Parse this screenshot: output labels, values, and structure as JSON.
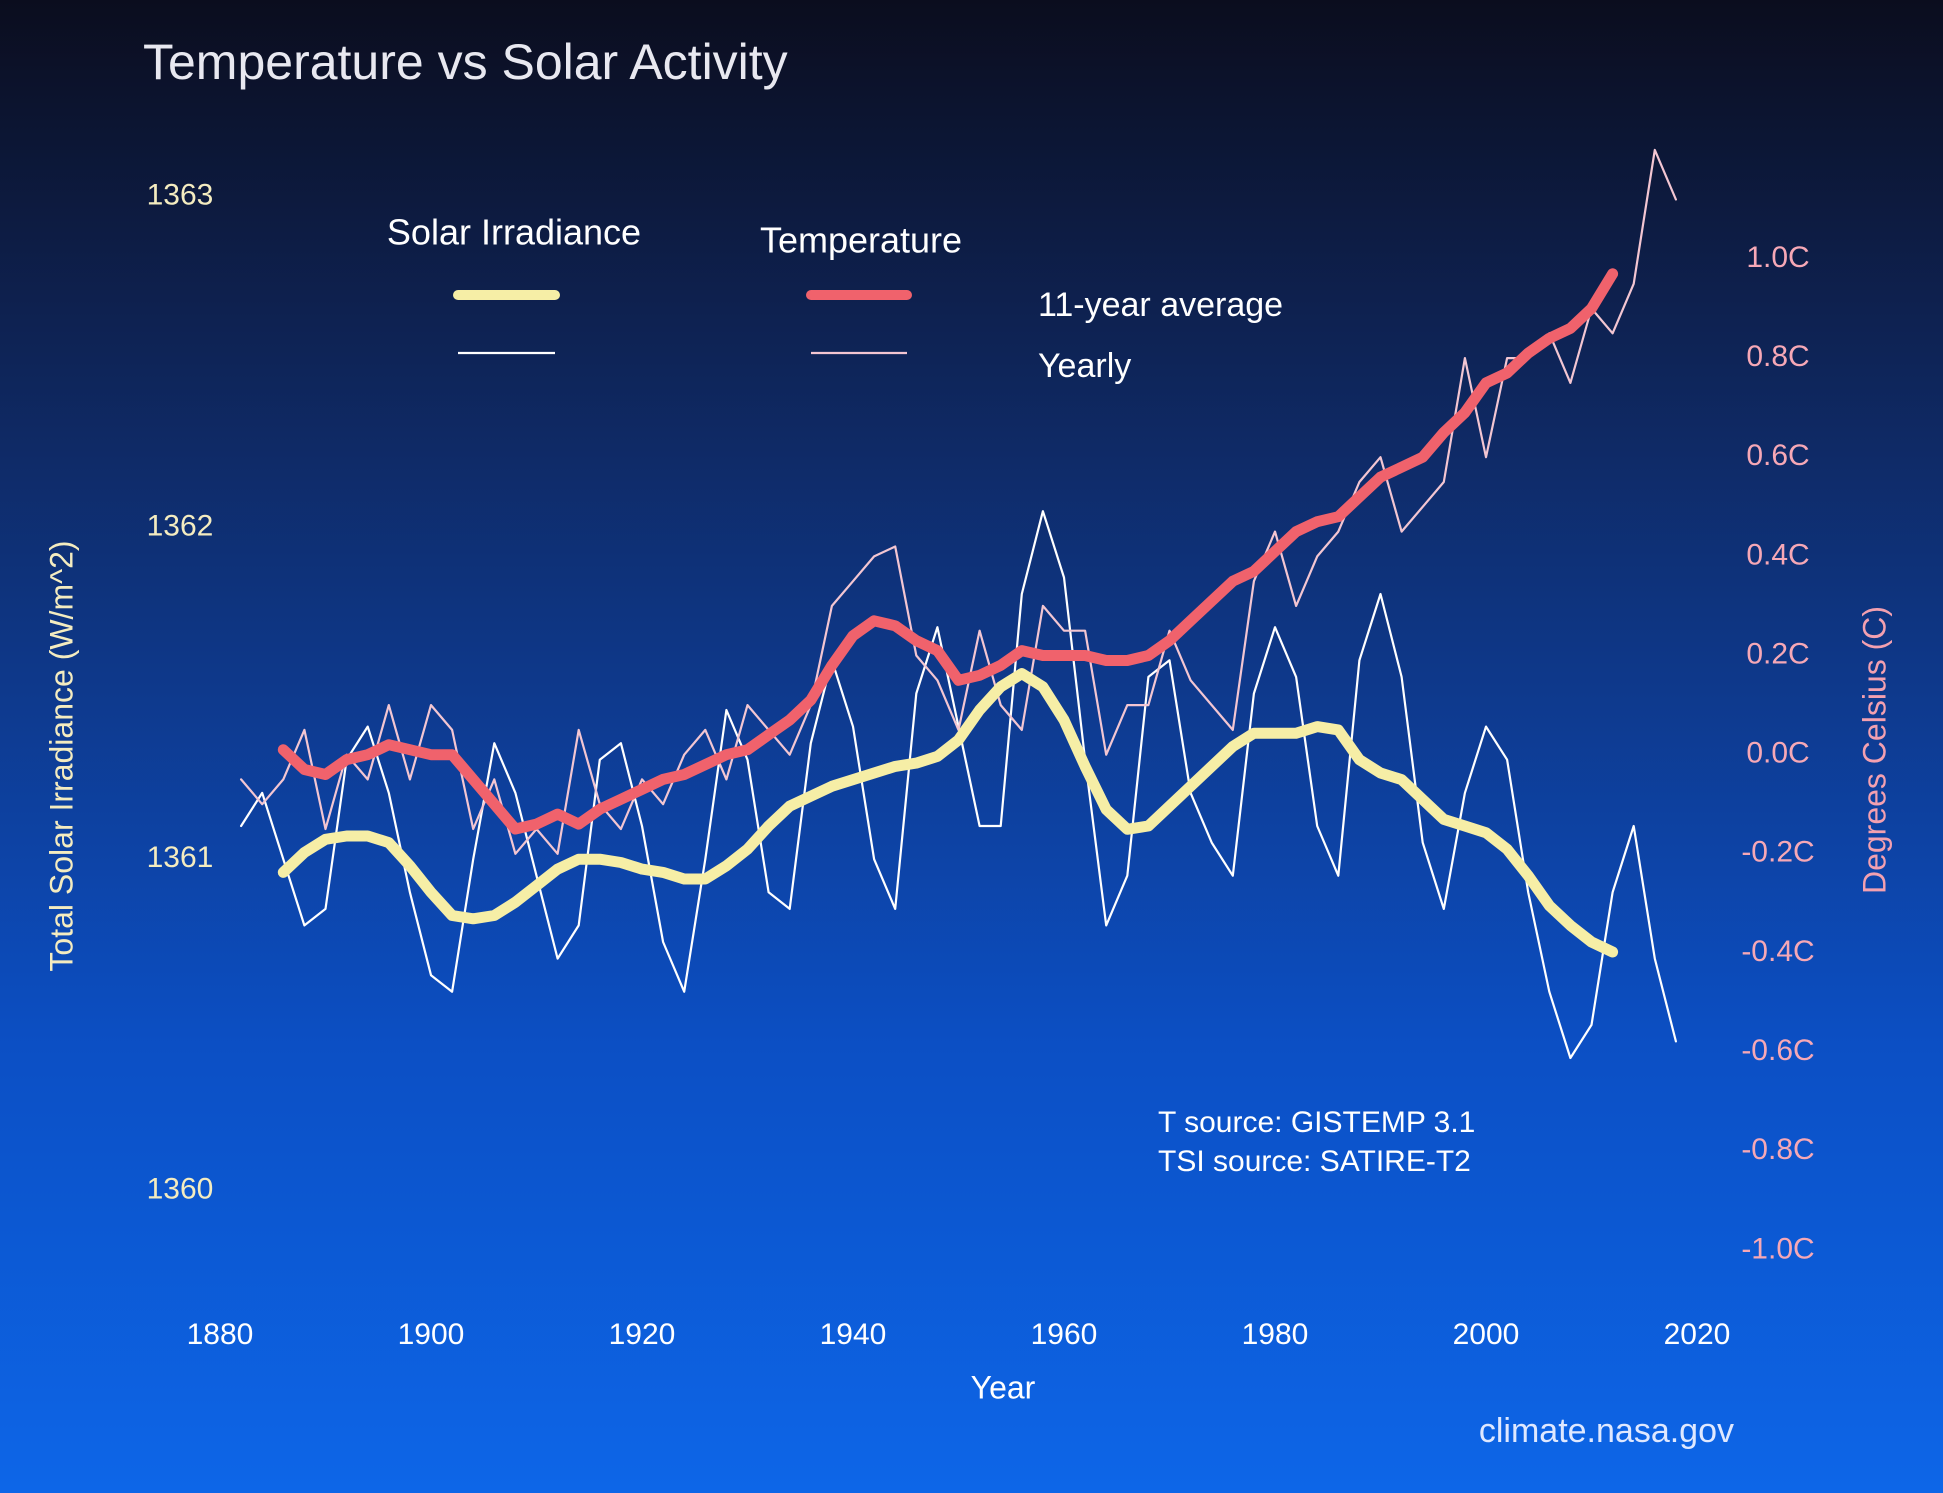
{
  "chart_data": {
    "type": "line",
    "title": "Temperature vs Solar Activity",
    "x_label": "Year",
    "y_label": "Total Solar Irradiance (W/m^2)",
    "y2_label": "Degrees Celsius (C)",
    "annotations": [
      "T source: GISTEMP 3.1",
      "TSI source: SATIRE-T2"
    ],
    "credit": "climate.nasa.gov",
    "lines": {
      "average": "11-year average",
      "yearly": "Yearly"
    },
    "xlim": [
      1880,
      2020
    ],
    "xticks": [
      1880,
      1900,
      1920,
      1940,
      1960,
      1980,
      2000,
      2020
    ],
    "ylim": [
      1359.7,
      1363.17
    ],
    "yticks": [
      1360,
      1361,
      1362,
      1363
    ],
    "y2lim": [
      -1.08,
      1.24
    ],
    "y2ticks": [
      {
        "value": -1.0,
        "label": "-1.0C"
      },
      {
        "value": -0.8,
        "label": "-0.8C"
      },
      {
        "value": -0.6,
        "label": "-0.6C"
      },
      {
        "value": -0.4,
        "label": "-0.4C"
      },
      {
        "value": -0.2,
        "label": "-0.2C"
      },
      {
        "value": 0.0,
        "label": "0.0C"
      },
      {
        "value": 0.2,
        "label": "0.2C"
      },
      {
        "value": 0.4,
        "label": "0.4C"
      },
      {
        "value": 0.6,
        "label": "0.6C"
      },
      {
        "value": 0.8,
        "label": "0.8C"
      },
      {
        "value": 1.0,
        "label": "1.0C"
      }
    ],
    "x": [
      1882,
      1884,
      1886,
      1888,
      1890,
      1892,
      1894,
      1896,
      1898,
      1900,
      1902,
      1904,
      1906,
      1908,
      1910,
      1912,
      1914,
      1916,
      1918,
      1920,
      1922,
      1924,
      1926,
      1928,
      1930,
      1932,
      1934,
      1936,
      1938,
      1940,
      1942,
      1944,
      1946,
      1948,
      1950,
      1952,
      1954,
      1956,
      1958,
      1960,
      1962,
      1964,
      1966,
      1968,
      1970,
      1972,
      1974,
      1976,
      1978,
      1980,
      1982,
      1984,
      1986,
      1988,
      1990,
      1992,
      1994,
      1996,
      1998,
      2000,
      2002,
      2004,
      2006,
      2008,
      2010,
      2012,
      2014,
      2016,
      2018
    ],
    "series": [
      {
        "name": "Solar Irradiance",
        "axis": "y",
        "average_color": "#f6eea6",
        "yearly_color": "#ffffff",
        "average": [
          null,
          null,
          1360.96,
          1361.02,
          1361.06,
          1361.07,
          1361.07,
          1361.05,
          1360.98,
          1360.9,
          1360.83,
          1360.82,
          1360.83,
          1360.87,
          1360.92,
          1360.97,
          1361.0,
          1361.0,
          1360.99,
          1360.97,
          1360.96,
          1360.94,
          1360.94,
          1360.98,
          1361.03,
          1361.1,
          1361.16,
          1361.19,
          1361.22,
          1361.24,
          1361.26,
          1361.28,
          1361.29,
          1361.31,
          1361.36,
          1361.45,
          1361.52,
          1361.56,
          1361.52,
          1361.42,
          1361.28,
          1361.15,
          1361.09,
          1361.1,
          1361.16,
          1361.22,
          1361.28,
          1361.34,
          1361.38,
          1361.38,
          1361.38,
          1361.4,
          1361.39,
          1361.3,
          1361.26,
          1361.24,
          1361.18,
          1361.12,
          1361.1,
          1361.08,
          1361.03,
          1360.95,
          1360.86,
          1360.8,
          1360.75,
          1360.72,
          null,
          null,
          null
        ],
        "yearly": [
          1361.1,
          1361.2,
          1361.0,
          1360.8,
          1360.85,
          1361.3,
          1361.4,
          1361.2,
          1360.9,
          1360.65,
          1360.6,
          1361.0,
          1361.35,
          1361.2,
          1360.95,
          1360.7,
          1360.8,
          1361.3,
          1361.35,
          1361.1,
          1360.75,
          1360.6,
          1361.0,
          1361.45,
          1361.3,
          1360.9,
          1360.85,
          1361.35,
          1361.6,
          1361.4,
          1361.0,
          1360.85,
          1361.5,
          1361.7,
          1361.4,
          1361.1,
          1361.1,
          1361.8,
          1362.05,
          1361.85,
          1361.3,
          1360.8,
          1360.95,
          1361.55,
          1361.6,
          1361.2,
          1361.05,
          1360.95,
          1361.5,
          1361.7,
          1361.55,
          1361.1,
          1360.95,
          1361.6,
          1361.8,
          1361.55,
          1361.05,
          1360.85,
          1361.2,
          1361.4,
          1361.3,
          1360.9,
          1360.6,
          1360.4,
          1360.5,
          1360.9,
          1361.1,
          1360.7,
          1360.45
        ]
      },
      {
        "name": "Temperature",
        "axis": "y2",
        "average_color": "#f0626c",
        "yearly_color": "#f3c6d2",
        "average": [
          null,
          null,
          0.01,
          -0.03,
          -0.04,
          -0.01,
          0.0,
          0.02,
          0.01,
          0.0,
          0.0,
          -0.05,
          -0.1,
          -0.15,
          -0.14,
          -0.12,
          -0.14,
          -0.11,
          -0.09,
          -0.07,
          -0.05,
          -0.04,
          -0.02,
          0.0,
          0.01,
          0.04,
          0.07,
          0.11,
          0.18,
          0.24,
          0.27,
          0.26,
          0.23,
          0.21,
          0.15,
          0.16,
          0.18,
          0.21,
          0.2,
          0.2,
          0.2,
          0.19,
          0.19,
          0.2,
          0.23,
          0.27,
          0.31,
          0.35,
          0.37,
          0.41,
          0.45,
          0.47,
          0.48,
          0.52,
          0.56,
          0.58,
          0.6,
          0.65,
          0.69,
          0.75,
          0.77,
          0.81,
          0.84,
          0.86,
          0.9,
          0.97,
          null,
          null,
          null
        ],
        "yearly": [
          -0.05,
          -0.1,
          -0.05,
          0.05,
          -0.15,
          0.0,
          -0.05,
          0.1,
          -0.05,
          0.1,
          0.05,
          -0.15,
          -0.05,
          -0.2,
          -0.15,
          -0.2,
          0.05,
          -0.1,
          -0.15,
          -0.05,
          -0.1,
          0.0,
          0.05,
          -0.05,
          0.1,
          0.05,
          0.0,
          0.1,
          0.3,
          0.35,
          0.4,
          0.42,
          0.2,
          0.15,
          0.05,
          0.25,
          0.1,
          0.05,
          0.3,
          0.25,
          0.25,
          0.0,
          0.1,
          0.1,
          0.25,
          0.15,
          0.1,
          0.05,
          0.35,
          0.45,
          0.3,
          0.4,
          0.45,
          0.55,
          0.6,
          0.45,
          0.5,
          0.55,
          0.8,
          0.6,
          0.8,
          0.8,
          0.85,
          0.75,
          0.9,
          0.85,
          0.95,
          1.22,
          1.12
        ]
      }
    ]
  }
}
